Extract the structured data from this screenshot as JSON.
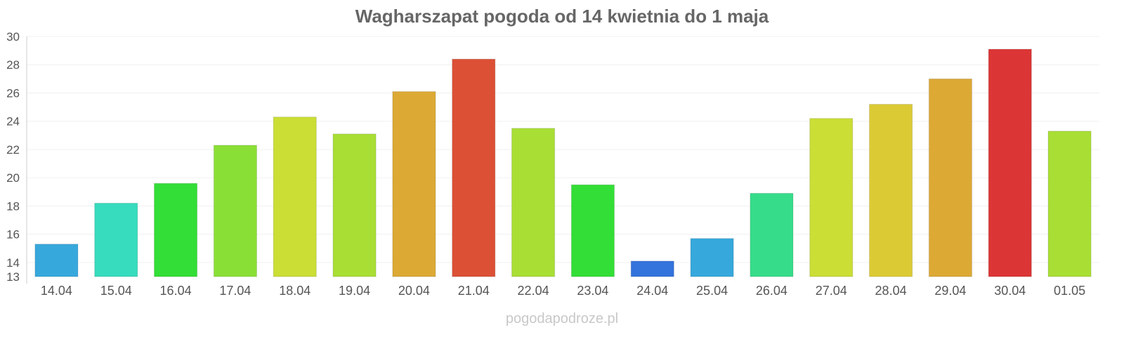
{
  "chart_data": {
    "type": "bar",
    "title": "Wagharszapat pogoda od 14 kwietnia do 1 maja",
    "xlabel": "",
    "ylabel": "",
    "categories": [
      "14.04",
      "15.04",
      "16.04",
      "17.04",
      "18.04",
      "19.04",
      "20.04",
      "21.04",
      "22.04",
      "23.04",
      "24.04",
      "25.04",
      "26.04",
      "27.04",
      "28.04",
      "29.04",
      "30.04",
      "01.05"
    ],
    "values": [
      15.3,
      18.2,
      19.6,
      22.3,
      24.3,
      23.1,
      26.1,
      28.4,
      23.5,
      19.5,
      14.1,
      15.7,
      18.9,
      24.2,
      25.2,
      27.0,
      29.1,
      23.3
    ],
    "colors": [
      "#37a8dc",
      "#36dcbd",
      "#33de36",
      "#8adf36",
      "#cade35",
      "#a9de35",
      "#dca935",
      "#dc5035",
      "#a9de35",
      "#33de36",
      "#3373dc",
      "#37a8dc",
      "#36dc8a",
      "#cade35",
      "#dcca35",
      "#dca935",
      "#dc3535",
      "#a9de35"
    ],
    "yticks": [
      13,
      14,
      16,
      18,
      20,
      22,
      24,
      26,
      28,
      30
    ],
    "ylim": [
      13,
      30
    ],
    "grid": true,
    "legend": "none"
  },
  "footer": {
    "source": "pogodapodroze.pl"
  }
}
